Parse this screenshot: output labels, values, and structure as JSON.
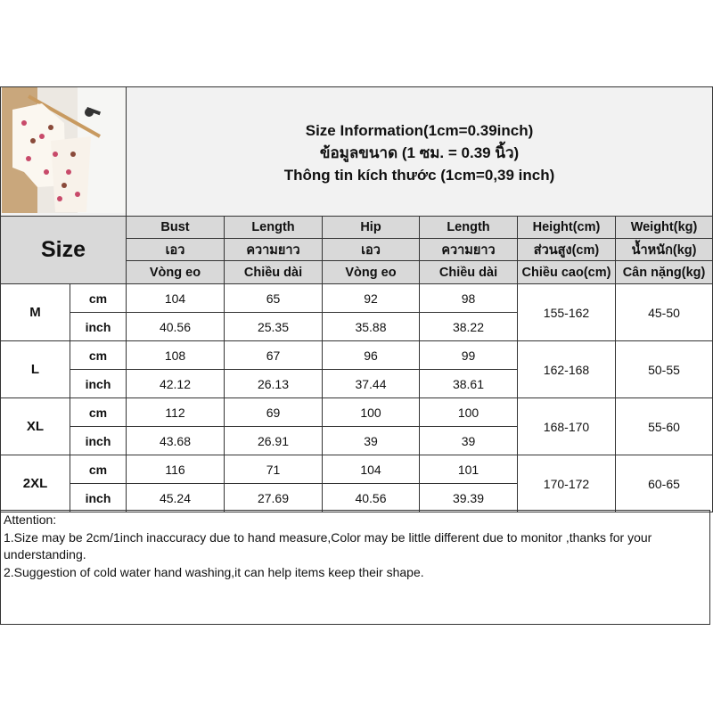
{
  "header": {
    "title_en": "Size Information(1cm=0.39inch)",
    "title_th": "ข้อมูลขนาด (1 ซม. = 0.39 นิ้ว)",
    "title_vi": "Thông tin kích thước (1cm=0,39 inch)",
    "size_label": "Size"
  },
  "columns": [
    {
      "en": "Bust",
      "th": "เอว",
      "vi": "Vòng eo"
    },
    {
      "en": "Length",
      "th": "ความยาว",
      "vi": "Chiều dài"
    },
    {
      "en": "Hip",
      "th": "เอว",
      "vi": "Vòng eo"
    },
    {
      "en": "Length",
      "th": "ความยาว",
      "vi": "Chiều dài"
    },
    {
      "en": "Height(cm)",
      "th": "ส่วนสูง(cm)",
      "vi": "Chiều cao(cm)"
    },
    {
      "en": "Weight(kg)",
      "th": "น้ำหนัก(kg)",
      "vi": "Cân nặng(kg)"
    }
  ],
  "rows": [
    {
      "size": "M",
      "cm_label": "cm",
      "inch_label": "inch",
      "cm": [
        "104",
        "65",
        "92",
        "98"
      ],
      "inch": [
        "40.56",
        "25.35",
        "35.88",
        "38.22"
      ],
      "height": "155-162",
      "weight": "45-50"
    },
    {
      "size": "L",
      "cm_label": "cm",
      "inch_label": "inch",
      "cm": [
        "108",
        "67",
        "96",
        "99"
      ],
      "inch": [
        "42.12",
        "26.13",
        "37.44",
        "38.61"
      ],
      "height": "162-168",
      "weight": "50-55"
    },
    {
      "size": "XL",
      "cm_label": "cm",
      "inch_label": "inch",
      "cm": [
        "112",
        "69",
        "100",
        "100"
      ],
      "inch": [
        "43.68",
        "26.91",
        "39",
        "39"
      ],
      "height": "168-170",
      "weight": "55-60"
    },
    {
      "size": "2XL",
      "cm_label": "cm",
      "inch_label": "inch",
      "cm": [
        "116",
        "71",
        "104",
        "101"
      ],
      "inch": [
        "45.24",
        "27.69",
        "40.56",
        "39.39"
      ],
      "height": "170-172",
      "weight": "60-65"
    }
  ],
  "attention": {
    "title": "Attention:",
    "line1": "1.Size may be 2cm/1inch inaccuracy due to hand measure,Color may be little different due to monitor ,thanks for your understanding.",
    "line2": "2.Suggestion of cold water hand washing,it can help items keep their shape."
  }
}
